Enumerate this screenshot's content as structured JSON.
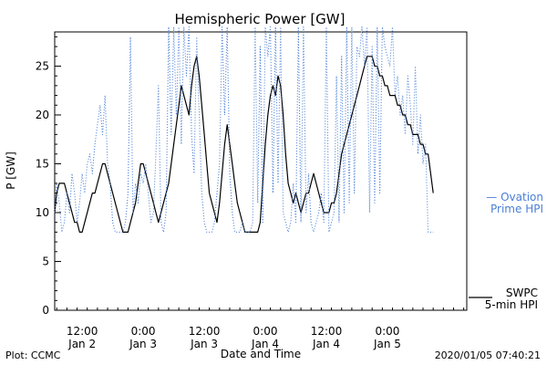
{
  "chart_data": {
    "type": "line",
    "title": "Hemispheric Power [GW]",
    "xlabel": "Date and Time",
    "ylabel": "P [GW]",
    "x_unit": "hours from 2020/01/02 00:00 UTC",
    "xlim": [
      6.6,
      87.6
    ],
    "ylim": [
      0,
      28.5
    ],
    "y_ticks": [
      0,
      5,
      10,
      15,
      20,
      25
    ],
    "x_ticks": [
      {
        "x": 12,
        "time": "12:00",
        "date": "Jan 2"
      },
      {
        "x": 24,
        "time": "0:00",
        "date": "Jan 3"
      },
      {
        "x": 36,
        "time": "12:00",
        "date": "Jan 3"
      },
      {
        "x": 48,
        "time": "0:00",
        "date": "Jan 4"
      },
      {
        "x": 60,
        "time": "12:00",
        "date": "Jan 4"
      },
      {
        "x": 72,
        "time": "0:00",
        "date": "Jan 5"
      }
    ],
    "series": [
      {
        "name": "SWPC 5-min HPI",
        "color": "#000000",
        "style": "solid",
        "points": [
          [
            6.6,
            10
          ],
          [
            7.0,
            12
          ],
          [
            7.5,
            13
          ],
          [
            8.0,
            13
          ],
          [
            8.5,
            13
          ],
          [
            9.0,
            12
          ],
          [
            9.5,
            11
          ],
          [
            10.0,
            10
          ],
          [
            10.5,
            9
          ],
          [
            11.0,
            9
          ],
          [
            11.5,
            8
          ],
          [
            12.0,
            8
          ],
          [
            12.5,
            9
          ],
          [
            13.0,
            10
          ],
          [
            13.5,
            11
          ],
          [
            14.0,
            12
          ],
          [
            14.5,
            12
          ],
          [
            15.0,
            13
          ],
          [
            15.5,
            14
          ],
          [
            16.0,
            15
          ],
          [
            16.5,
            15
          ],
          [
            17.0,
            14
          ],
          [
            17.5,
            13
          ],
          [
            18.0,
            12
          ],
          [
            18.5,
            11
          ],
          [
            19.0,
            10
          ],
          [
            19.5,
            9
          ],
          [
            20.0,
            8
          ],
          [
            20.5,
            8
          ],
          [
            21.0,
            8
          ],
          [
            21.5,
            9
          ],
          [
            22.0,
            10
          ],
          [
            22.5,
            11
          ],
          [
            23.0,
            13
          ],
          [
            23.5,
            15
          ],
          [
            24.0,
            15
          ],
          [
            24.5,
            14
          ],
          [
            25.0,
            13
          ],
          [
            25.5,
            12
          ],
          [
            26.0,
            11
          ],
          [
            26.5,
            10
          ],
          [
            27.0,
            9
          ],
          [
            27.5,
            10
          ],
          [
            28.0,
            11
          ],
          [
            28.5,
            12
          ],
          [
            29.0,
            13
          ],
          [
            29.5,
            15
          ],
          [
            30.0,
            17
          ],
          [
            30.5,
            19
          ],
          [
            31.0,
            21
          ],
          [
            31.5,
            23
          ],
          [
            32.0,
            22
          ],
          [
            32.5,
            21
          ],
          [
            33.0,
            20
          ],
          [
            33.5,
            23
          ],
          [
            34.0,
            25
          ],
          [
            34.5,
            26
          ],
          [
            35.0,
            24
          ],
          [
            35.5,
            21
          ],
          [
            36.0,
            18
          ],
          [
            36.5,
            15
          ],
          [
            37.0,
            12
          ],
          [
            37.5,
            11
          ],
          [
            38.0,
            10
          ],
          [
            38.5,
            9
          ],
          [
            39.0,
            11
          ],
          [
            39.5,
            14
          ],
          [
            40.0,
            17
          ],
          [
            40.5,
            19
          ],
          [
            41.0,
            17
          ],
          [
            41.5,
            15
          ],
          [
            42.0,
            13
          ],
          [
            42.5,
            11
          ],
          [
            43.0,
            10
          ],
          [
            43.5,
            9
          ],
          [
            44.0,
            8
          ],
          [
            44.5,
            8
          ],
          [
            45.0,
            8
          ],
          [
            45.5,
            8
          ],
          [
            46.0,
            8
          ],
          [
            46.5,
            8
          ],
          [
            47.0,
            9
          ],
          [
            47.5,
            13
          ],
          [
            48.0,
            17
          ],
          [
            48.5,
            20
          ],
          [
            49.0,
            22
          ],
          [
            49.5,
            23
          ],
          [
            50.0,
            22
          ],
          [
            50.5,
            24
          ],
          [
            51.0,
            23
          ],
          [
            51.5,
            20
          ],
          [
            52.0,
            16
          ],
          [
            52.5,
            13
          ],
          [
            53.0,
            12
          ],
          [
            53.5,
            11
          ],
          [
            54.0,
            12
          ],
          [
            54.5,
            11
          ],
          [
            55.0,
            10
          ],
          [
            55.5,
            11
          ],
          [
            56.0,
            12
          ],
          [
            56.5,
            12
          ],
          [
            57.0,
            13
          ],
          [
            57.5,
            14
          ],
          [
            58.0,
            13
          ],
          [
            58.5,
            12
          ],
          [
            59.0,
            11
          ],
          [
            59.5,
            10
          ],
          [
            60.0,
            10
          ],
          [
            60.5,
            10
          ],
          [
            61.0,
            11
          ],
          [
            61.5,
            11
          ],
          [
            62.0,
            12
          ],
          [
            62.5,
            14
          ],
          [
            63.0,
            16
          ],
          [
            63.5,
            17
          ],
          [
            64.0,
            18
          ],
          [
            64.5,
            19
          ],
          [
            65.0,
            20
          ],
          [
            65.5,
            21
          ],
          [
            66.0,
            22
          ],
          [
            66.5,
            23
          ],
          [
            67.0,
            24
          ],
          [
            67.5,
            25
          ],
          [
            68.0,
            26
          ],
          [
            68.5,
            26
          ],
          [
            69.0,
            26
          ],
          [
            69.5,
            25
          ],
          [
            70.0,
            25
          ],
          [
            70.5,
            24
          ],
          [
            71.0,
            24
          ],
          [
            71.5,
            23
          ],
          [
            72.0,
            23
          ],
          [
            72.5,
            22
          ],
          [
            73.0,
            22
          ],
          [
            73.5,
            22
          ],
          [
            74.0,
            21
          ],
          [
            74.5,
            21
          ],
          [
            75.0,
            20
          ],
          [
            75.5,
            20
          ],
          [
            76.0,
            19
          ],
          [
            76.5,
            19
          ],
          [
            77.0,
            18
          ],
          [
            77.5,
            18
          ],
          [
            78.0,
            18
          ],
          [
            78.5,
            17
          ],
          [
            79.0,
            17
          ],
          [
            79.5,
            16
          ],
          [
            80.0,
            16
          ],
          [
            80.5,
            14
          ],
          [
            81.0,
            12
          ]
        ]
      },
      {
        "name": "Ovation Prime HPI",
        "color": "#4a7fd4",
        "style": "dotted",
        "points": [
          [
            6.6,
            10
          ],
          [
            7.0,
            13
          ],
          [
            7.5,
            11
          ],
          [
            8.0,
            8
          ],
          [
            8.5,
            9
          ],
          [
            9.0,
            12
          ],
          [
            9.5,
            10
          ],
          [
            10.0,
            14
          ],
          [
            10.5,
            12
          ],
          [
            11.0,
            9
          ],
          [
            11.5,
            11
          ],
          [
            12.0,
            14
          ],
          [
            12.5,
            12
          ],
          [
            13.0,
            15
          ],
          [
            13.5,
            16
          ],
          [
            14.0,
            14
          ],
          [
            14.5,
            17
          ],
          [
            15.0,
            19
          ],
          [
            15.5,
            21
          ],
          [
            16.0,
            18
          ],
          [
            16.5,
            22
          ],
          [
            17.0,
            15
          ],
          [
            17.5,
            13
          ],
          [
            18.0,
            9
          ],
          [
            18.5,
            8
          ],
          [
            19.0,
            8
          ],
          [
            19.5,
            8
          ],
          [
            20.0,
            8
          ],
          [
            20.5,
            9
          ],
          [
            21.0,
            12
          ],
          [
            21.5,
            28
          ],
          [
            22.0,
            10
          ],
          [
            22.5,
            13
          ],
          [
            23.0,
            11
          ],
          [
            23.5,
            14
          ],
          [
            24.0,
            13
          ],
          [
            24.5,
            15
          ],
          [
            25.0,
            12
          ],
          [
            25.5,
            9
          ],
          [
            26.0,
            10
          ],
          [
            26.5,
            16
          ],
          [
            27.0,
            23
          ],
          [
            27.5,
            9
          ],
          [
            28.0,
            8
          ],
          [
            28.5,
            10
          ],
          [
            29.0,
            29
          ],
          [
            29.5,
            18
          ],
          [
            30.0,
            29
          ],
          [
            30.5,
            20
          ],
          [
            31.0,
            29
          ],
          [
            31.5,
            17
          ],
          [
            32.0,
            29
          ],
          [
            32.5,
            24
          ],
          [
            33.0,
            29
          ],
          [
            33.5,
            18
          ],
          [
            34.0,
            14
          ],
          [
            34.5,
            28
          ],
          [
            35.0,
            20
          ],
          [
            35.5,
            12
          ],
          [
            36.0,
            9
          ],
          [
            36.5,
            8
          ],
          [
            37.0,
            8
          ],
          [
            37.5,
            8
          ],
          [
            38.0,
            9
          ],
          [
            38.5,
            12
          ],
          [
            39.0,
            15
          ],
          [
            39.5,
            29
          ],
          [
            40.0,
            20
          ],
          [
            40.5,
            29
          ],
          [
            41.0,
            14
          ],
          [
            41.5,
            10
          ],
          [
            42.0,
            8
          ],
          [
            42.5,
            8
          ],
          [
            43.0,
            8
          ],
          [
            43.5,
            9
          ],
          [
            44.0,
            8
          ],
          [
            44.5,
            8
          ],
          [
            45.0,
            8
          ],
          [
            45.5,
            9
          ],
          [
            46.0,
            29
          ],
          [
            46.5,
            11
          ],
          [
            47.0,
            27
          ],
          [
            47.5,
            9
          ],
          [
            48.0,
            29
          ],
          [
            48.5,
            26
          ],
          [
            49.0,
            29
          ],
          [
            49.5,
            12
          ],
          [
            50.0,
            29
          ],
          [
            50.5,
            13
          ],
          [
            51.0,
            29
          ],
          [
            51.5,
            10
          ],
          [
            52.0,
            9
          ],
          [
            52.5,
            8
          ],
          [
            53.0,
            9
          ],
          [
            53.5,
            13
          ],
          [
            54.0,
            9
          ],
          [
            54.5,
            29
          ],
          [
            55.0,
            9
          ],
          [
            55.5,
            29
          ],
          [
            56.0,
            10
          ],
          [
            56.5,
            14
          ],
          [
            57.0,
            9
          ],
          [
            57.5,
            8
          ],
          [
            58.0,
            9
          ],
          [
            58.5,
            10
          ],
          [
            59.0,
            12
          ],
          [
            59.5,
            9
          ],
          [
            60.0,
            29
          ],
          [
            60.5,
            8
          ],
          [
            61.0,
            9
          ],
          [
            61.5,
            10
          ],
          [
            62.0,
            24
          ],
          [
            62.5,
            9
          ],
          [
            63.0,
            26
          ],
          [
            63.5,
            10
          ],
          [
            64.0,
            29
          ],
          [
            64.5,
            11
          ],
          [
            65.0,
            29
          ],
          [
            65.5,
            12
          ],
          [
            66.0,
            27
          ],
          [
            66.5,
            26
          ],
          [
            67.0,
            29
          ],
          [
            67.5,
            25
          ],
          [
            68.0,
            29
          ],
          [
            68.5,
            10
          ],
          [
            69.0,
            27
          ],
          [
            69.5,
            11
          ],
          [
            70.0,
            29
          ],
          [
            70.5,
            12
          ],
          [
            71.0,
            29
          ],
          [
            71.5,
            27
          ],
          [
            72.0,
            26
          ],
          [
            72.5,
            25
          ],
          [
            73.0,
            29
          ],
          [
            73.5,
            22
          ],
          [
            74.0,
            24
          ],
          [
            74.5,
            20
          ],
          [
            75.0,
            22
          ],
          [
            75.5,
            18
          ],
          [
            76.0,
            24
          ],
          [
            76.5,
            21
          ],
          [
            77.0,
            17
          ],
          [
            77.5,
            25
          ],
          [
            78.0,
            16
          ],
          [
            78.5,
            20
          ],
          [
            79.0,
            15
          ],
          [
            79.5,
            17
          ],
          [
            80.0,
            8
          ],
          [
            80.5,
            8
          ],
          [
            81.0,
            8
          ]
        ]
      }
    ],
    "legend": [
      {
        "lines": [
          "— Ovation",
          "Prime HPI"
        ],
        "color": "#4a7fd4",
        "placement": "right-middle"
      },
      {
        "lines": [
          "SWPC",
          "5-min HPI"
        ],
        "color": "#000000",
        "placement": "right-bottom"
      }
    ]
  },
  "footer": {
    "left": "Plot: CCMC",
    "right": "2020/01/05 07:40:21"
  }
}
